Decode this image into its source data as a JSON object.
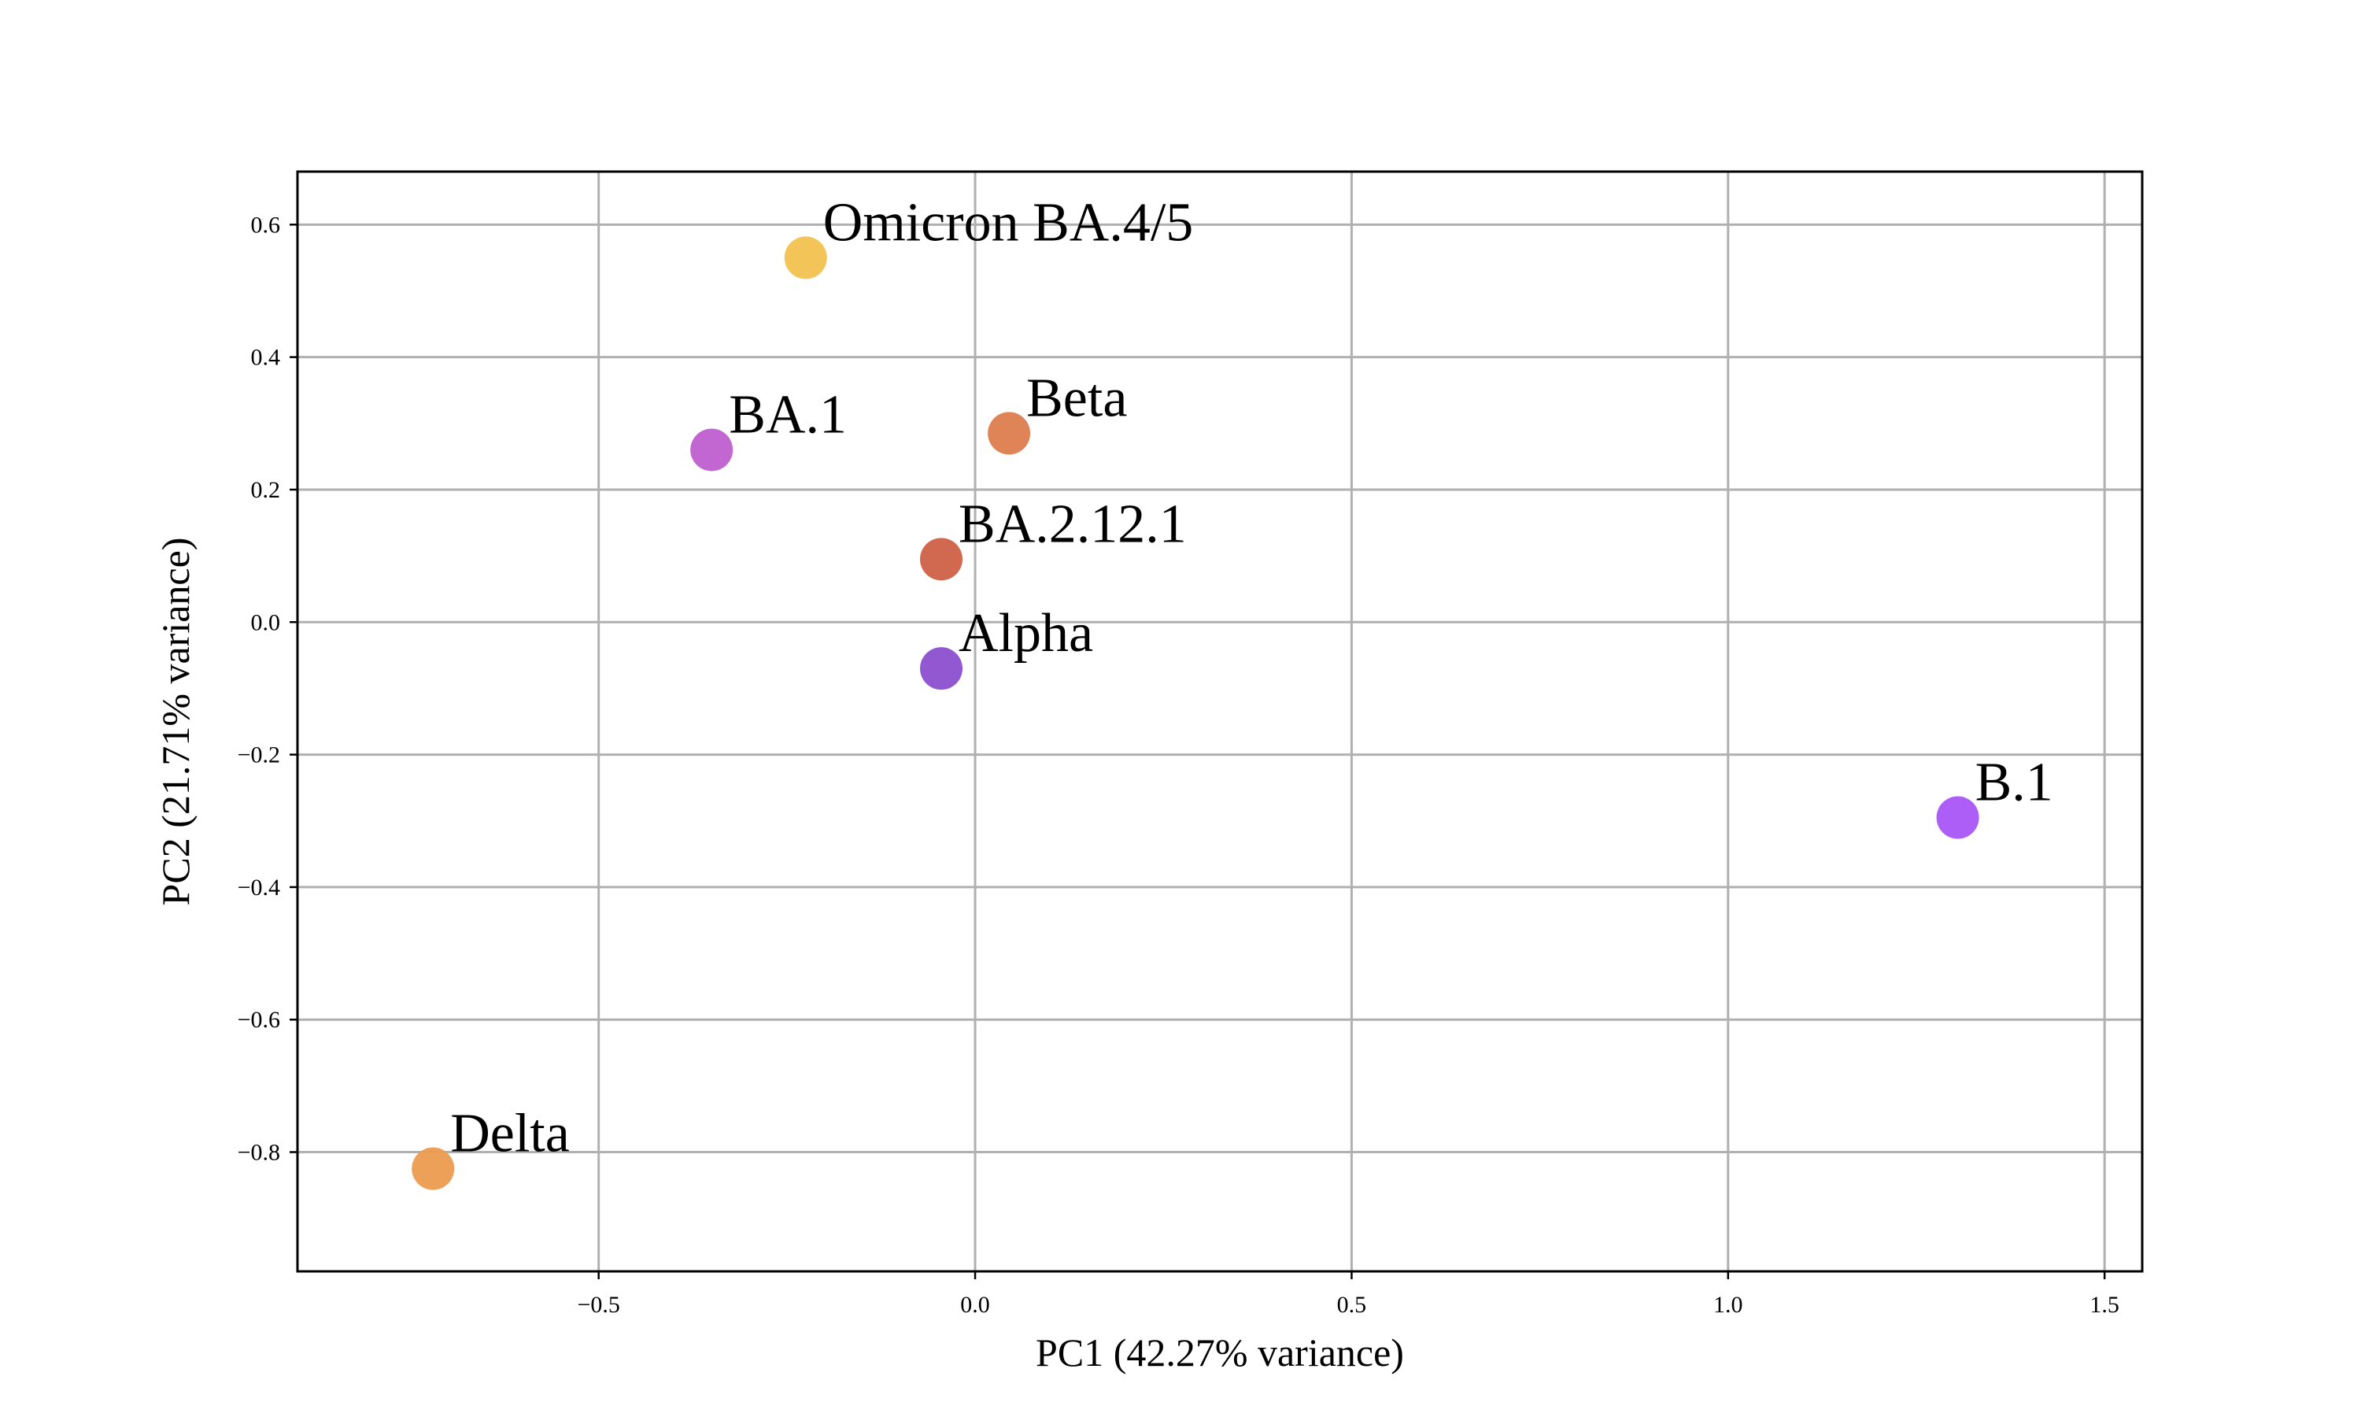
{
  "chart_data": {
    "type": "scatter",
    "title": "",
    "xlabel": "PC1 (42.27% variance)",
    "ylabel": "PC2 (21.71% variance)",
    "xlim": [
      -0.9,
      1.55
    ],
    "ylim": [
      -0.98,
      0.68
    ],
    "grid": true,
    "legend": "none",
    "xticks": [
      -0.5,
      0.0,
      0.5,
      1.0,
      1.5
    ],
    "xtick_labels": [
      "−0.5",
      "0.0",
      "0.5",
      "1.0",
      "1.5"
    ],
    "yticks": [
      -0.8,
      -0.6,
      -0.4,
      -0.2,
      0.0,
      0.2,
      0.4,
      0.6
    ],
    "ytick_labels": [
      "−0.8",
      "−0.6",
      "−0.4",
      "−0.2",
      "0.0",
      "0.2",
      "0.4",
      "0.6"
    ],
    "points": [
      {
        "label": "Omicron BA.4/5",
        "x": -0.225,
        "y": 0.55,
        "color": "#f2c14e"
      },
      {
        "label": "BA.1",
        "x": -0.35,
        "y": 0.26,
        "color": "#bf5fcf"
      },
      {
        "label": "Beta",
        "x": 0.045,
        "y": 0.285,
        "color": "#dd7d4e"
      },
      {
        "label": "BA.2.12.1",
        "x": -0.045,
        "y": 0.095,
        "color": "#cd6147"
      },
      {
        "label": "Alpha",
        "x": -0.045,
        "y": -0.07,
        "color": "#8b4fcf"
      },
      {
        "label": "B.1",
        "x": 1.305,
        "y": -0.295,
        "color": "#a855f7"
      },
      {
        "label": "Delta",
        "x": -0.72,
        "y": -0.825,
        "color": "#ec9c4f"
      }
    ]
  }
}
